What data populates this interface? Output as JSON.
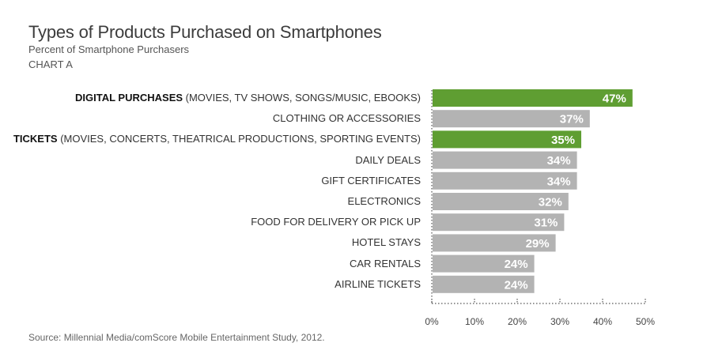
{
  "chart_data": {
    "type": "bar",
    "orientation": "horizontal",
    "title": "Types of Products Purchased on Smartphones",
    "subtitle": "Percent of Smartphone Purchasers",
    "chart_label": "CHART A",
    "categories": [
      {
        "bold": "DIGITAL PURCHASES",
        "rest": " (MOVIES, TV SHOWS, SONGS/MUSIC, EBOOKS)"
      },
      {
        "bold": "",
        "rest": "CLOTHING OR ACCESSORIES"
      },
      {
        "bold": "TICKETS",
        "rest": " (MOVIES, CONCERTS, THEATRICAL PRODUCTIONS, SPORTING EVENTS)"
      },
      {
        "bold": "",
        "rest": "DAILY DEALS"
      },
      {
        "bold": "",
        "rest": "GIFT CERTIFICATES"
      },
      {
        "bold": "",
        "rest": "ELECTRONICS"
      },
      {
        "bold": "",
        "rest": "FOOD FOR DELIVERY OR PICK UP"
      },
      {
        "bold": "",
        "rest": "HOTEL STAYS"
      },
      {
        "bold": "",
        "rest": "CAR RENTALS"
      },
      {
        "bold": "",
        "rest": "AIRLINE TICKETS"
      }
    ],
    "values": [
      47,
      37,
      35,
      34,
      34,
      32,
      31,
      29,
      24,
      24
    ],
    "value_labels": [
      "47%",
      "37%",
      "35%",
      "34%",
      "34%",
      "32%",
      "31%",
      "29%",
      "24%",
      "24%"
    ],
    "highlight": [
      true,
      false,
      true,
      false,
      false,
      false,
      false,
      false,
      false,
      false
    ],
    "xlim": [
      0,
      50
    ],
    "xticks": [
      0,
      10,
      20,
      30,
      40,
      50
    ],
    "xtick_labels": [
      "0%",
      "10%",
      "20%",
      "30%",
      "40%",
      "50%"
    ],
    "colors": {
      "highlight": "#5f9e32",
      "default": "#b3b3b3",
      "axis": "#555555"
    },
    "source": "Source: Millennial Media/comScore Mobile Entertainment Study, 2012."
  }
}
